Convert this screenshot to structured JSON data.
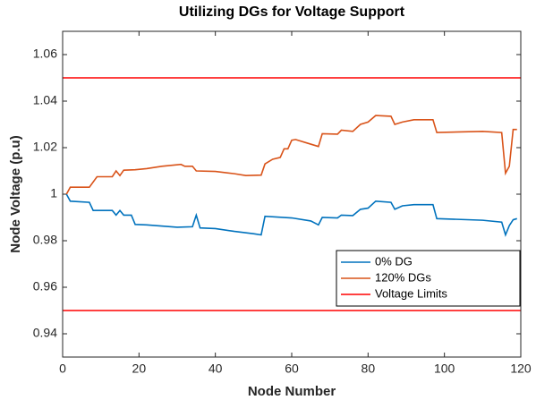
{
  "chart_data": {
    "type": "line",
    "title": "Utilizing DGs for Voltage Support",
    "x_label": "Node Number",
    "y_label": "Node Voltage (p.u)",
    "xlim": [
      0,
      120
    ],
    "xticks": [
      0,
      20,
      40,
      60,
      80,
      100,
      120
    ],
    "ylim": [
      0.93,
      1.07
    ],
    "yticks": [
      0.94,
      0.96,
      0.98,
      1,
      1.02,
      1.04,
      1.06
    ],
    "legend_position": "lower right",
    "series": [
      {
        "name": "0% DG",
        "color": "#0072bd",
        "x": [
          1,
          2,
          7,
          8,
          13,
          14,
          15,
          16,
          18,
          19,
          22,
          30,
          34,
          35,
          36,
          40,
          45,
          50,
          52,
          53,
          60,
          65,
          67,
          68,
          72,
          73,
          76,
          78,
          80,
          82,
          86,
          87,
          89,
          92,
          97,
          98,
          110,
          115,
          116,
          117,
          118,
          119
        ],
        "values": [
          1.0,
          0.997,
          0.9965,
          0.993,
          0.993,
          0.991,
          0.993,
          0.991,
          0.991,
          0.987,
          0.9868,
          0.9858,
          0.986,
          0.991,
          0.9855,
          0.9852,
          0.984,
          0.983,
          0.9825,
          0.9905,
          0.9898,
          0.9885,
          0.9868,
          0.99,
          0.9898,
          0.991,
          0.9908,
          0.9935,
          0.994,
          0.997,
          0.9965,
          0.9935,
          0.995,
          0.9955,
          0.9955,
          0.9895,
          0.9888,
          0.988,
          0.9825,
          0.9865,
          0.989,
          0.9895
        ]
      },
      {
        "name": "120% DGs",
        "color": "#d95319",
        "x": [
          1,
          2,
          7,
          9,
          13,
          14,
          15,
          16,
          19,
          22,
          26,
          31,
          32,
          34,
          35,
          40,
          45,
          48,
          52,
          53,
          55,
          57,
          58,
          59,
          60,
          61,
          64,
          67,
          68,
          72,
          73,
          76,
          78,
          80,
          82,
          86,
          87,
          89,
          92,
          97,
          98,
          110,
          115,
          116,
          117,
          118,
          119
        ],
        "values": [
          1.0,
          1.003,
          1.003,
          1.0075,
          1.0075,
          1.01,
          1.008,
          1.0103,
          1.0105,
          1.011,
          1.012,
          1.0128,
          1.012,
          1.012,
          1.01,
          1.0098,
          1.0088,
          1.008,
          1.0082,
          1.013,
          1.015,
          1.0158,
          1.0195,
          1.0195,
          1.0232,
          1.0235,
          1.022,
          1.0205,
          1.026,
          1.0258,
          1.0275,
          1.027,
          1.03,
          1.031,
          1.0338,
          1.0335,
          1.03,
          1.031,
          1.032,
          1.032,
          1.0265,
          1.027,
          1.0265,
          1.009,
          1.012,
          1.0278,
          1.0278
        ]
      },
      {
        "name": "Voltage Limits",
        "color": "#ff0000",
        "x": [
          0,
          120
        ],
        "values": [
          1.05,
          1.05
        ]
      },
      {
        "x": [
          0,
          120
        ],
        "values": [
          0.95,
          0.95
        ],
        "color": "#ff0000"
      }
    ]
  }
}
